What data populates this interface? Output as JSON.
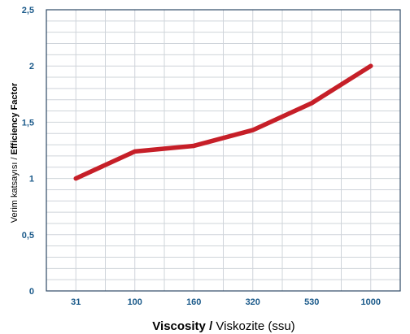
{
  "chart_data": {
    "type": "line",
    "x_categories": [
      "31",
      "100",
      "160",
      "320",
      "530",
      "1000"
    ],
    "y_ticks": [
      "0",
      "0,5",
      "1",
      "1,5",
      "2",
      "2,5"
    ],
    "ylim": [
      0,
      2.5
    ],
    "series": [
      {
        "values": [
          1.0,
          1.24,
          1.29,
          1.43,
          1.67,
          2.0
        ]
      }
    ],
    "xlabel": {
      "primary": "Viscosity",
      "separator": " / ",
      "secondary": "Viskozite (ssu)"
    },
    "ylabel": {
      "secondary": "Verim katsayısı / ",
      "primary": "Efficiency Factor"
    },
    "grid": true,
    "colors": {
      "line": "#c61f28",
      "grid": "#cfd4da",
      "axis_text": "#1b5a8a",
      "frame": "#2e4a66"
    }
  }
}
